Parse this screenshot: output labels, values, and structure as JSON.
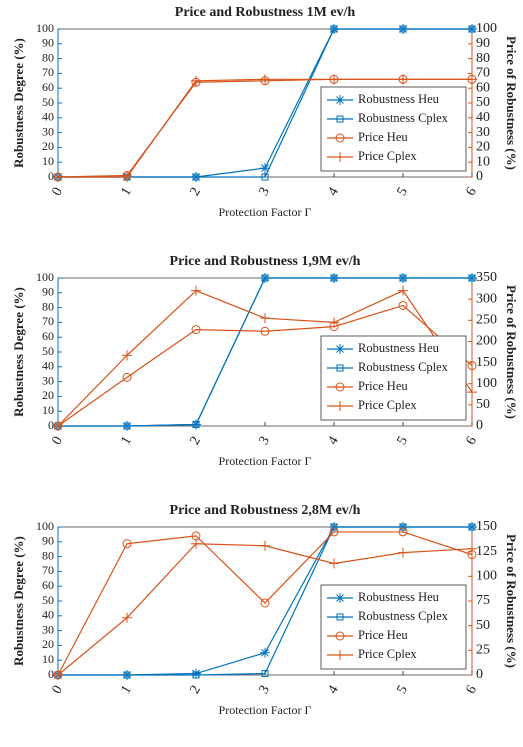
{
  "chart_data": [
    {
      "type": "line",
      "title": "Price and Robustness 1M ev/h",
      "xlabel": "Protection Factor Γ",
      "ylabel": "Robustness Degree (%)",
      "y2label": "Price of Robustness (%)",
      "x": [
        0,
        1,
        2,
        3,
        4,
        5,
        6
      ],
      "xlim": [
        0,
        6
      ],
      "xticks": [
        0,
        1,
        2,
        3,
        4,
        5,
        6
      ],
      "ylim": [
        0,
        100
      ],
      "yticks": [
        0,
        10,
        20,
        30,
        40,
        50,
        60,
        70,
        80,
        90,
        100
      ],
      "y2lim": [
        0,
        100
      ],
      "y2ticks": [
        0,
        10,
        20,
        30,
        40,
        50,
        60,
        70,
        80,
        90,
        100
      ],
      "legend": "lower right",
      "series": [
        {
          "name": "Robustness Heu",
          "color": "#0072bd",
          "marker": "star",
          "values": [
            0,
            0,
            0,
            6,
            100,
            100,
            100
          ]
        },
        {
          "name": "Robustness Cplex",
          "color": "#0072bd",
          "marker": "square",
          "values": [
            0,
            0,
            0,
            0,
            100,
            100,
            100
          ]
        },
        {
          "name": "Price Heu",
          "color": "#d95319",
          "marker": "circle",
          "axis": "y2",
          "values": [
            0,
            1,
            64,
            65,
            66,
            66,
            66
          ]
        },
        {
          "name": "Price Cplex",
          "color": "#d95319",
          "marker": "plus",
          "axis": "y2",
          "values": [
            0,
            0,
            65,
            66,
            66,
            66,
            66
          ]
        }
      ]
    },
    {
      "type": "line",
      "title": "Price and Robustness 1,9M ev/h",
      "xlabel": "Protection Factor Γ",
      "ylabel": "Robustness Degree (%)",
      "y2label": "Price of Robustness (%)",
      "x": [
        0,
        1,
        2,
        3,
        4,
        5,
        6
      ],
      "xlim": [
        0,
        6
      ],
      "xticks": [
        0,
        1,
        2,
        3,
        4,
        5,
        6
      ],
      "ylim": [
        0,
        100
      ],
      "yticks": [
        0,
        10,
        20,
        30,
        40,
        50,
        60,
        70,
        80,
        90,
        100
      ],
      "y2lim": [
        0,
        350
      ],
      "y2ticks": [
        0,
        50,
        100,
        150,
        200,
        250,
        300,
        350
      ],
      "legend": "lower right",
      "series": [
        {
          "name": "Robustness Heu",
          "color": "#0072bd",
          "marker": "star",
          "values": [
            0,
            0,
            1,
            100,
            100,
            100,
            100
          ]
        },
        {
          "name": "Robustness Cplex",
          "color": "#0072bd",
          "marker": "square",
          "values": [
            0,
            0,
            1,
            100,
            100,
            100,
            100
          ]
        },
        {
          "name": "Price Heu",
          "color": "#d95319",
          "marker": "circle",
          "axis": "y2",
          "values": [
            0,
            115,
            228,
            224,
            235,
            285,
            143
          ]
        },
        {
          "name": "Price Cplex",
          "color": "#d95319",
          "marker": "plus",
          "axis": "y2",
          "values": [
            0,
            167,
            320,
            255,
            245,
            320,
            80
          ]
        }
      ]
    },
    {
      "type": "line",
      "title": "Price and Robustness 2,8M ev/h",
      "xlabel": "Protection Factor Γ",
      "ylabel": "Robustness Degree (%)",
      "y2label": "Price of Robustness (%)",
      "x": [
        0,
        1,
        2,
        3,
        4,
        5,
        6
      ],
      "xlim": [
        0,
        6
      ],
      "xticks": [
        0,
        1,
        2,
        3,
        4,
        5,
        6
      ],
      "ylim": [
        0,
        100
      ],
      "yticks": [
        0,
        10,
        20,
        30,
        40,
        50,
        60,
        70,
        80,
        90,
        100
      ],
      "y2lim": [
        0,
        150
      ],
      "y2ticks": [
        0,
        25,
        50,
        75,
        100,
        125,
        150
      ],
      "legend": "lower right",
      "series": [
        {
          "name": "Robustness Heu",
          "color": "#0072bd",
          "marker": "star",
          "values": [
            0,
            0,
            1,
            15,
            100,
            100,
            100
          ]
        },
        {
          "name": "Robustness Cplex",
          "color": "#0072bd",
          "marker": "square",
          "values": [
            0,
            0,
            0,
            1,
            100,
            100,
            100
          ]
        },
        {
          "name": "Price Heu",
          "color": "#d95319",
          "marker": "circle",
          "axis": "y2",
          "values": [
            0,
            133,
            141,
            73,
            145,
            145,
            122
          ]
        },
        {
          "name": "Price Cplex",
          "color": "#d95319",
          "marker": "plus",
          "axis": "y2",
          "values": [
            0,
            58,
            133,
            131,
            113,
            124,
            128
          ]
        }
      ]
    }
  ]
}
